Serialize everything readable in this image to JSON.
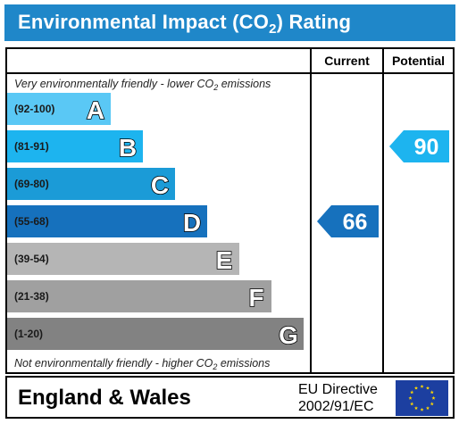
{
  "title": {
    "main": "Environmental Impact (CO",
    "sub": "2",
    "tail": ") Rating"
  },
  "columns": {
    "current": "Current",
    "potential": "Potential"
  },
  "notes": {
    "top_pre": "Very environmentally friendly - lower CO",
    "top_sub": "2",
    "top_post": " emissions",
    "bottom_pre": "Not environmentally friendly - higher CO",
    "bottom_sub": "2",
    "bottom_post": " emissions"
  },
  "chart_data": {
    "type": "bar",
    "categories": [
      "A",
      "B",
      "C",
      "D",
      "E",
      "F",
      "G"
    ],
    "ranges": [
      "(92-100)",
      "(81-91)",
      "(69-80)",
      "(55-68)",
      "(39-54)",
      "(21-38)",
      "(1-20)"
    ],
    "range_bounds": [
      [
        92,
        100
      ],
      [
        81,
        91
      ],
      [
        69,
        80
      ],
      [
        55,
        68
      ],
      [
        39,
        54
      ],
      [
        21,
        38
      ],
      [
        1,
        20
      ]
    ],
    "colors": [
      "#5ac8f5",
      "#1db4ef",
      "#1b9bd7",
      "#1671bd",
      "#b5b5b5",
      "#a0a0a0",
      "#828282"
    ],
    "current": {
      "value": 66,
      "band": "D"
    },
    "potential": {
      "value": 90,
      "band": "B"
    },
    "marker_colors": {
      "current": "#1671bd",
      "potential": "#1db4ef"
    }
  },
  "footer": {
    "region": "England & Wales",
    "directive_line1": "EU Directive",
    "directive_line2": "2002/91/EC"
  },
  "icons": {
    "flag": "eu-flag-icon"
  }
}
